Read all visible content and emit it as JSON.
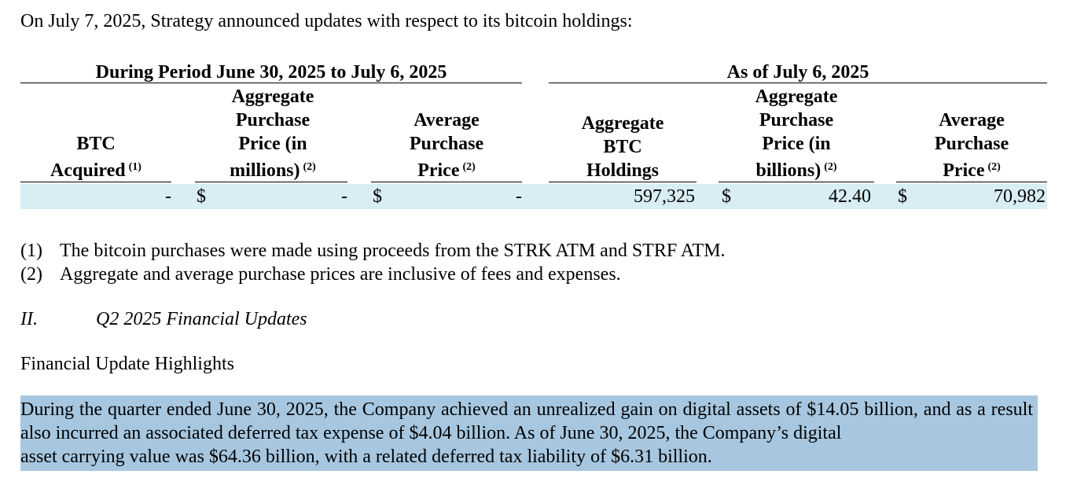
{
  "intro": "On July 7, 2025, Strategy announced updates with respect to its bitcoin holdings:",
  "table": {
    "group_left": "During Period June 30, 2025 to July 6, 2025",
    "group_right": "As of July 6, 2025",
    "headers": [
      {
        "lines": [
          "BTC",
          "Acquired"
        ],
        "note": "(1)"
      },
      {
        "lines": [
          "Aggregate",
          "Purchase",
          "Price (in",
          "millions)"
        ],
        "note": "(2)"
      },
      {
        "lines": [
          "Average",
          "Purchase",
          "Price"
        ],
        "note": "(2)"
      },
      {
        "lines": [
          "Aggregate",
          "BTC",
          "Holdings"
        ],
        "note": ""
      },
      {
        "lines": [
          "Aggregate",
          "Purchase",
          "Price (in",
          "billions)"
        ],
        "note": "(2)"
      },
      {
        "lines": [
          "Average",
          "Purchase",
          "Price"
        ],
        "note": "(2)"
      }
    ],
    "row": {
      "btc_acquired": "-",
      "currency": "$",
      "agg_purchase_millions": "-",
      "avg_purchase_price_period": "-",
      "agg_btc_holdings": "597,325",
      "agg_purchase_billions": "42.40",
      "avg_purchase_price_total": "70,982"
    }
  },
  "footnotes": [
    {
      "num": "(1)",
      "text": "The bitcoin purchases were made using proceeds from the STRK ATM and STRF ATM."
    },
    {
      "num": "(2)",
      "text": "Aggregate and average purchase prices are inclusive of fees and expenses."
    }
  ],
  "section": {
    "number": "II.",
    "title": "Q2 2025 Financial Updates"
  },
  "subheading": "Financial Update Highlights",
  "paragraph": {
    "body": "During the quarter ended June 30, 2025, the Company achieved an unrealized gain on digital assets of $14.05 billion, and as a result also incurred an associated deferred tax expense of $4.04 billion. As of June 30, 2025, the Company’s digital",
    "last_line": "asset carrying value was $64.36 billion, with a related deferred tax liability of $6.31 billion."
  },
  "colors": {
    "row_highlight": "#d9edf5",
    "selection_highlight": "#a7c7e0"
  }
}
